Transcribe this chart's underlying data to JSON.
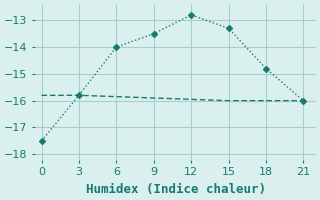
{
  "line1_x": [
    0,
    3,
    6,
    9,
    12,
    15,
    18,
    21
  ],
  "line1_y": [
    -15.8,
    -15.8,
    -15.85,
    -15.9,
    -15.95,
    -16.0,
    -16.0,
    -16.0
  ],
  "line2_x": [
    0,
    3,
    6,
    9,
    12,
    15,
    18,
    21
  ],
  "line2_y": [
    -17.5,
    -15.8,
    -14.0,
    -13.5,
    -12.8,
    -13.3,
    -14.8,
    -16.0
  ],
  "xlabel": "Humidex (Indice chaleur)",
  "ylim": [
    -18.2,
    -12.4
  ],
  "xlim": [
    -0.5,
    22
  ],
  "yticks": [
    -18,
    -17,
    -16,
    -15,
    -14,
    -13
  ],
  "xticks": [
    0,
    3,
    6,
    9,
    12,
    15,
    18,
    21
  ],
  "line_color": "#1a7a6e",
  "bg_color": "#d9f0ee",
  "grid_color": "#aacccc",
  "xlabel_fontsize": 9,
  "tick_fontsize": 8
}
